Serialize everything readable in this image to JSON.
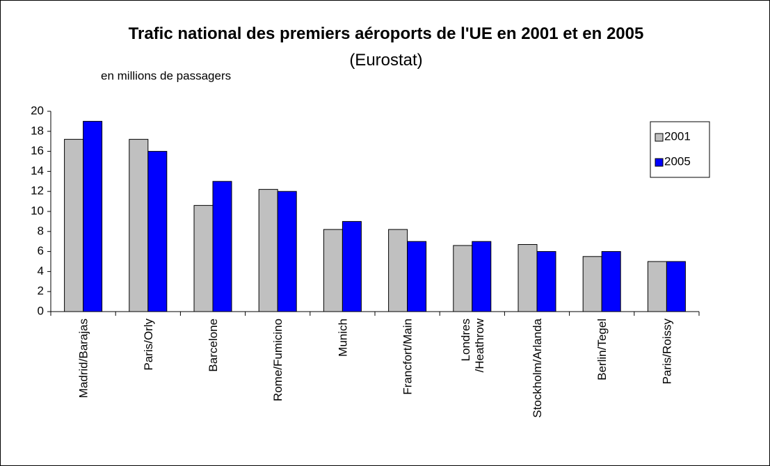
{
  "chart_data": {
    "type": "bar",
    "title": "Trafic national des premiers aéroports de l'UE en 2001 et en 2005",
    "source": "(Eurostat)",
    "y_label": "en millions de passagers",
    "categories": [
      "Madrid/Barajas",
      "Paris/Orly",
      "Barcelone",
      "Rome/Fumicino",
      "Munich",
      "Francfort/Main",
      "Londres\n/Heathrow",
      "Stockholm/Arlanda",
      "Berlin/Tegel",
      "Paris/Roissy"
    ],
    "series": [
      {
        "name": "2001",
        "color": "#c0c0c0",
        "values": [
          17.2,
          17.2,
          10.6,
          12.2,
          8.2,
          8.2,
          6.6,
          6.7,
          5.5,
          5
        ]
      },
      {
        "name": "2005",
        "color": "#0000ff",
        "values": [
          19,
          16,
          13,
          12,
          9,
          7,
          7,
          6,
          6,
          5
        ]
      }
    ],
    "ylim": [
      0,
      20
    ],
    "yticks": [
      0,
      2,
      4,
      6,
      8,
      10,
      12,
      14,
      16,
      18,
      20
    ],
    "grid": false,
    "legend": "right"
  }
}
